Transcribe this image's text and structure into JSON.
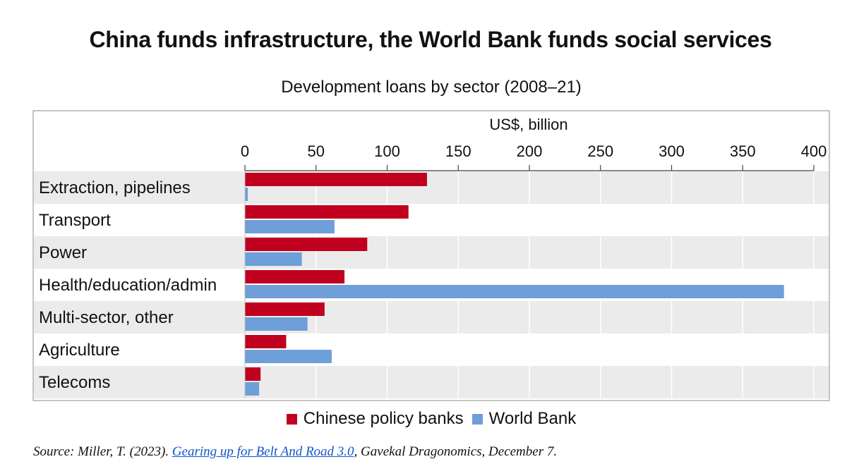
{
  "chart_data": {
    "type": "bar",
    "orientation": "horizontal",
    "title": "China funds infrastructure, the World Bank funds social services",
    "subtitle": "Development loans by sector (2008–21)",
    "xlabel": "US$, billion",
    "xlim": [
      0,
      400
    ],
    "xticks": [
      "0",
      "50",
      "100",
      "150",
      "200",
      "250",
      "300",
      "350",
      "400"
    ],
    "grid": true,
    "legend_position": "bottom",
    "categories": [
      "Extraction, pipelines",
      "Transport",
      "Power",
      "Health/education/admin",
      "Multi-sector, other",
      "Agriculture",
      "Telecoms"
    ],
    "series": [
      {
        "name": "Chinese policy banks",
        "color": "#c0001e",
        "values": [
          128,
          115,
          86,
          70,
          56,
          29,
          11
        ]
      },
      {
        "name": "World Bank",
        "color": "#6e9fd8",
        "values": [
          2,
          63,
          40,
          379,
          44,
          61,
          10
        ]
      }
    ]
  },
  "source": {
    "prefix": "Source: Miller, T. (2023). ",
    "link_text": "Gearing up for Belt And Road 3.0",
    "suffix": ", Gavekal Dragonomics, December 7."
  }
}
